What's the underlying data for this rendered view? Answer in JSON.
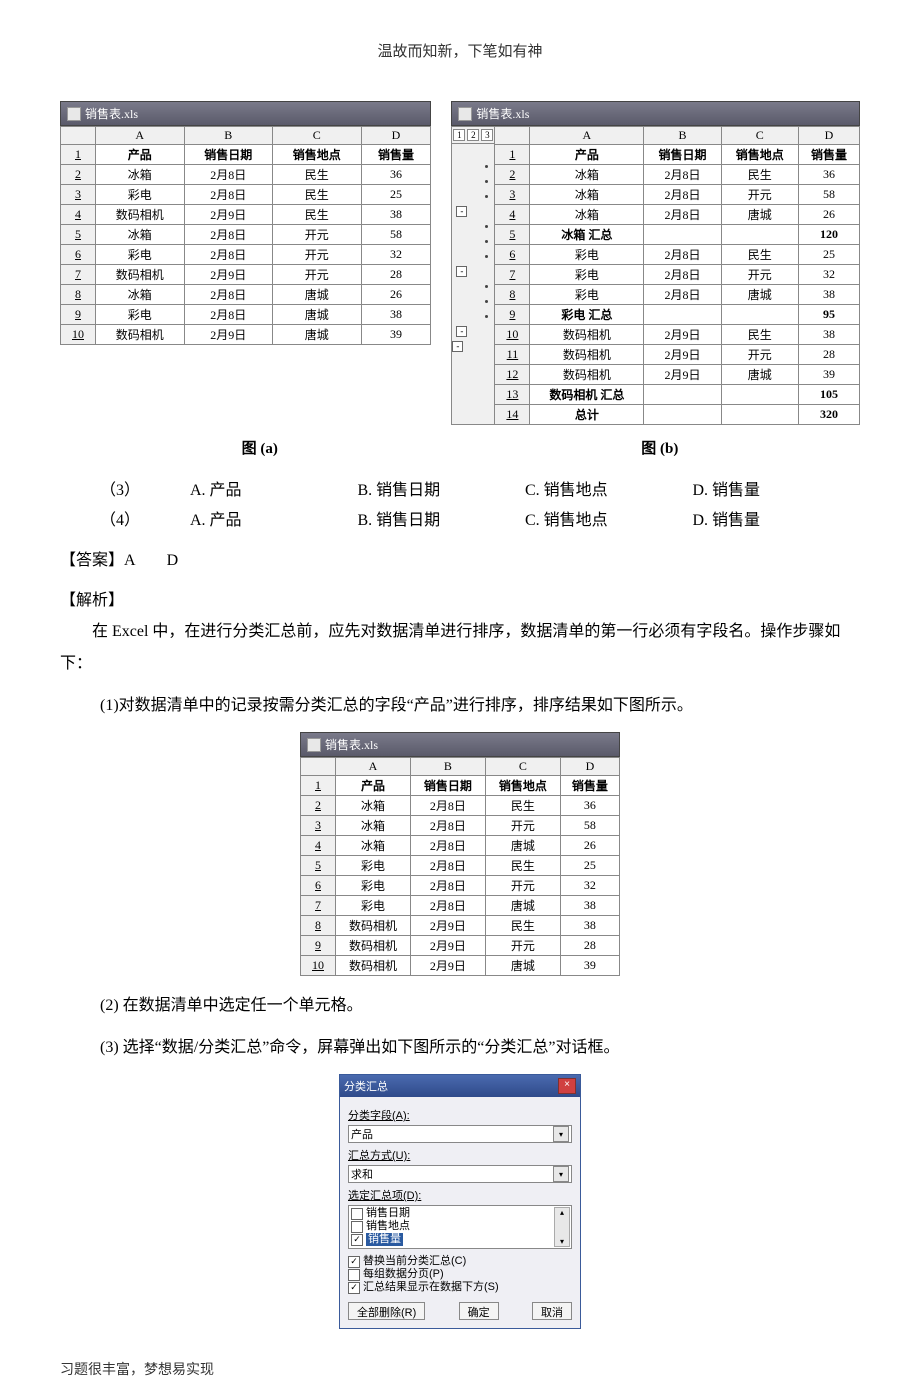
{
  "header": "温故而知新，下笔如有神",
  "footer": "习题很丰富，梦想易实现",
  "sheet_a": {
    "title": "销售表.xls",
    "cols": [
      "A",
      "B",
      "C",
      "D"
    ],
    "headers": [
      "产品",
      "销售日期",
      "销售地点",
      "销售量"
    ],
    "rows": [
      [
        "冰箱",
        "2月8日",
        "民生",
        "36"
      ],
      [
        "彩电",
        "2月8日",
        "民生",
        "25"
      ],
      [
        "数码相机",
        "2月9日",
        "民生",
        "38"
      ],
      [
        "冰箱",
        "2月8日",
        "开元",
        "58"
      ],
      [
        "彩电",
        "2月8日",
        "开元",
        "32"
      ],
      [
        "数码相机",
        "2月9日",
        "开元",
        "28"
      ],
      [
        "冰箱",
        "2月8日",
        "唐城",
        "26"
      ],
      [
        "彩电",
        "2月8日",
        "唐城",
        "38"
      ],
      [
        "数码相机",
        "2月9日",
        "唐城",
        "39"
      ]
    ],
    "caption": "图 (a)"
  },
  "sheet_b": {
    "title": "销售表.xls",
    "cols": [
      "A",
      "B",
      "C",
      "D"
    ],
    "headers": [
      "产品",
      "销售日期",
      "销售地点",
      "销售量"
    ],
    "rows": [
      {
        "n": "2",
        "c": [
          "冰箱",
          "2月8日",
          "民生",
          "36"
        ],
        "t": "d"
      },
      {
        "n": "3",
        "c": [
          "冰箱",
          "2月8日",
          "开元",
          "58"
        ],
        "t": "d"
      },
      {
        "n": "4",
        "c": [
          "冰箱",
          "2月8日",
          "唐城",
          "26"
        ],
        "t": "d"
      },
      {
        "n": "5",
        "c": [
          "冰箱 汇总",
          "",
          "",
          "120"
        ],
        "t": "s"
      },
      {
        "n": "6",
        "c": [
          "彩电",
          "2月8日",
          "民生",
          "25"
        ],
        "t": "d"
      },
      {
        "n": "7",
        "c": [
          "彩电",
          "2月8日",
          "开元",
          "32"
        ],
        "t": "d"
      },
      {
        "n": "8",
        "c": [
          "彩电",
          "2月8日",
          "唐城",
          "38"
        ],
        "t": "d"
      },
      {
        "n": "9",
        "c": [
          "彩电 汇总",
          "",
          "",
          "95"
        ],
        "t": "s"
      },
      {
        "n": "10",
        "c": [
          "数码相机",
          "2月9日",
          "民生",
          "38"
        ],
        "t": "d"
      },
      {
        "n": "11",
        "c": [
          "数码相机",
          "2月9日",
          "开元",
          "28"
        ],
        "t": "d"
      },
      {
        "n": "12",
        "c": [
          "数码相机",
          "2月9日",
          "唐城",
          "39"
        ],
        "t": "d"
      },
      {
        "n": "13",
        "c": [
          "数码相机 汇总",
          "",
          "",
          "105"
        ],
        "t": "s"
      },
      {
        "n": "14",
        "c": [
          "总计",
          "",
          "",
          "320"
        ],
        "t": "g"
      }
    ],
    "caption": "图 (b)"
  },
  "q3": {
    "num": "（3）",
    "a": "A. 产品",
    "b": "B. 销售日期",
    "c": "C. 销售地点",
    "d": "D. 销售量"
  },
  "q4": {
    "num": "（4）",
    "a": "A. 产品",
    "b": "B. 销售日期",
    "c": "C. 销售地点",
    "d": "D. 销售量"
  },
  "answer_label": "【答案】A　　D",
  "analysis_label": "【解析】",
  "para1": "在 Excel 中，在进行分类汇总前，应先对数据清单进行排序，数据清单的第一行必须有字段名。操作步骤如下：",
  "step1": "(1)对数据清单中的记录按需分类汇总的字段“产品”进行排序，排序结果如下图所示。",
  "sheet_c": {
    "title": "销售表.xls",
    "cols": [
      "A",
      "B",
      "C",
      "D"
    ],
    "headers": [
      "产品",
      "销售日期",
      "销售地点",
      "销售量"
    ],
    "rows": [
      [
        "冰箱",
        "2月8日",
        "民生",
        "36"
      ],
      [
        "冰箱",
        "2月8日",
        "开元",
        "58"
      ],
      [
        "冰箱",
        "2月8日",
        "唐城",
        "26"
      ],
      [
        "彩电",
        "2月8日",
        "民生",
        "25"
      ],
      [
        "彩电",
        "2月8日",
        "开元",
        "32"
      ],
      [
        "彩电",
        "2月8日",
        "唐城",
        "38"
      ],
      [
        "数码相机",
        "2月9日",
        "民生",
        "38"
      ],
      [
        "数码相机",
        "2月9日",
        "开元",
        "28"
      ],
      [
        "数码相机",
        "2月9日",
        "唐城",
        "39"
      ]
    ]
  },
  "step2": "(2) 在数据清单中选定任一个单元格。",
  "step3": "(3) 选择“数据/分类汇总”命令，屏幕弹出如下图所示的“分类汇总”对话框。",
  "dialog": {
    "title": "分类汇总",
    "field_label": "分类字段(A):",
    "field_value": "产品",
    "method_label": "汇总方式(U):",
    "method_value": "求和",
    "items_label": "选定汇总项(D):",
    "items": [
      "销售日期",
      "销售地点",
      "销售量"
    ],
    "selected_item": "销售量",
    "chk1": "替换当前分类汇总(C)",
    "chk2": "每组数据分页(P)",
    "chk3": "汇总结果显示在数据下方(S)",
    "btn_clear": "全部删除(R)",
    "btn_ok": "确定",
    "btn_cancel": "取消"
  }
}
